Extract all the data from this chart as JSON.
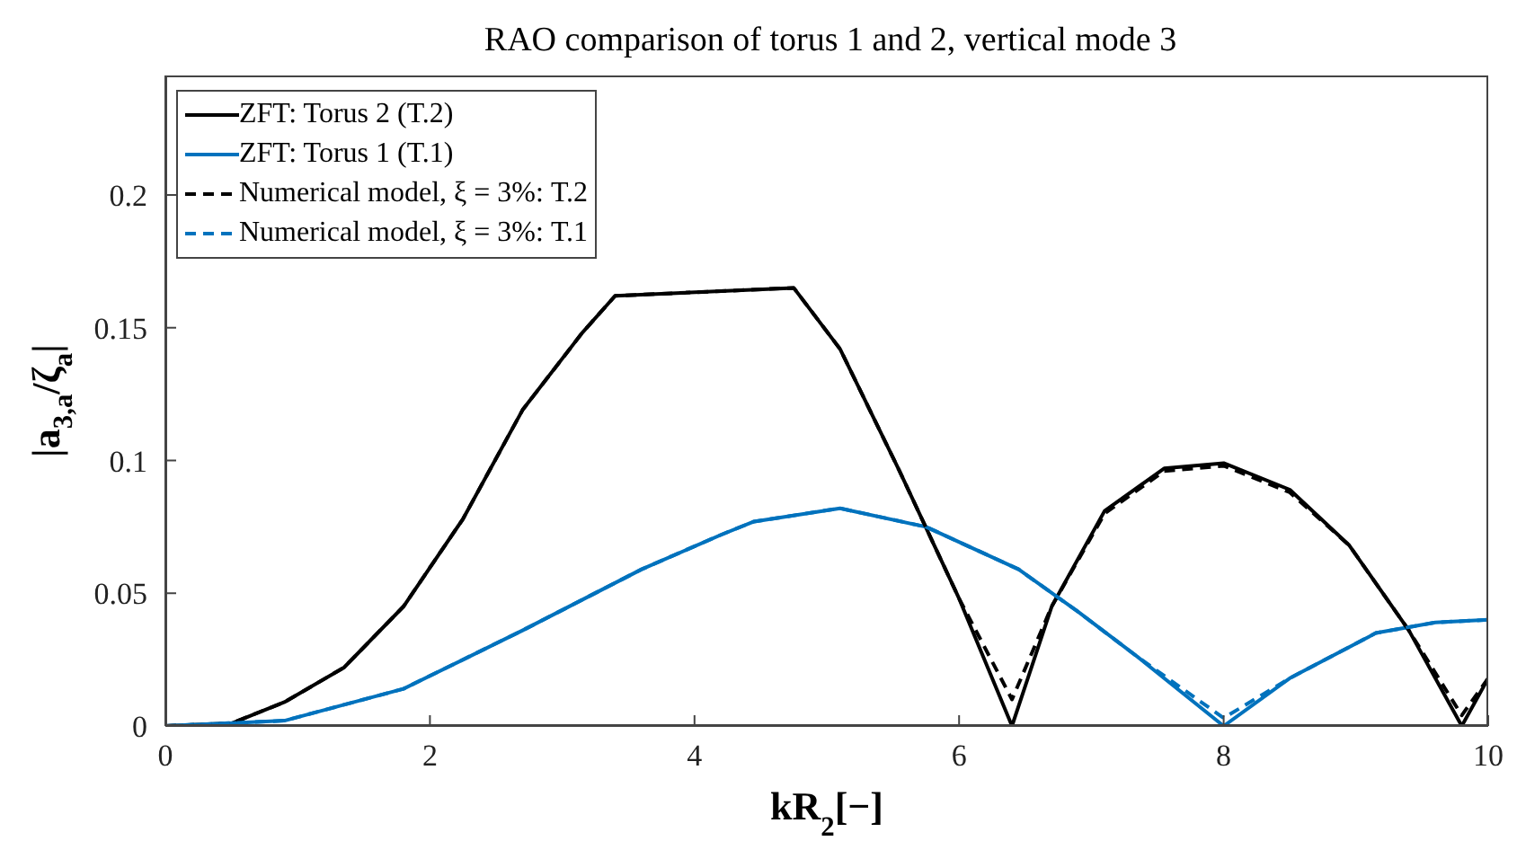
{
  "chart_data": {
    "type": "line",
    "title": "RAO comparison of torus 1 and 2, vertical mode 3",
    "xlabel": "kR$_{2}$[−]",
    "ylabel": "|a$_{3,a}$/ζ$_{a}$|",
    "xlim": [
      0,
      10
    ],
    "xticks": [
      0,
      2,
      4,
      6,
      8,
      10
    ],
    "ylim": [
      0,
      0.245
    ],
    "yticks": [
      0,
      0.05,
      0.1,
      0.15,
      0.2
    ],
    "grid": false,
    "legend": "top left",
    "marker": "none",
    "series": [
      {
        "name": "ZFT: Torus 2 (T.2)",
        "color": "#000000",
        "line_style": "solid",
        "x": [
          0,
          0.5,
          0.9,
          1.35,
          1.8,
          2.25,
          2.7,
          3.15,
          3.4,
          4.75,
          5.1,
          5.55,
          6,
          6.4,
          6.7,
          7.1,
          7.55,
          8,
          8.5,
          8.95,
          9.4,
          9.8,
          10
        ],
        "values": [
          0,
          0.001,
          0.009,
          0.022,
          0.045,
          0.078,
          0.119,
          0.148,
          0.162,
          0.165,
          0.142,
          0.096,
          0.048,
          0,
          0.045,
          0.081,
          0.097,
          0.099,
          0.089,
          0.068,
          0.036,
          0,
          0.018
        ]
      },
      {
        "name": "ZFT: Torus 1 (T.1)",
        "color": "#0072bd",
        "line_style": "solid",
        "x": [
          0,
          0.9,
          1.8,
          2.7,
          3.6,
          4.2,
          4.45,
          5.1,
          5.75,
          6.45,
          6.9,
          7.35,
          8,
          8.5,
          9.15,
          9.6,
          10
        ],
        "values": [
          0,
          0.002,
          0.014,
          0.036,
          0.059,
          0.072,
          0.077,
          0.082,
          0.075,
          0.059,
          0.043,
          0.026,
          0,
          0.018,
          0.035,
          0.039,
          0.04
        ]
      },
      {
        "name": "Numerical model, ξ = 3%: T.2",
        "color": "#000000",
        "line_style": "dashed",
        "x": [
          0,
          0.5,
          0.9,
          1.35,
          1.8,
          2.25,
          2.7,
          3.15,
          3.4,
          4.75,
          5.1,
          5.55,
          6,
          6.4,
          6.7,
          7.1,
          7.55,
          8,
          8.5,
          8.95,
          9.4,
          9.8,
          10
        ],
        "values": [
          0,
          0.001,
          0.009,
          0.022,
          0.045,
          0.078,
          0.119,
          0.148,
          0.162,
          0.165,
          0.142,
          0.096,
          0.048,
          0.01,
          0.045,
          0.08,
          0.096,
          0.098,
          0.088,
          0.068,
          0.036,
          0.004,
          0.018
        ]
      },
      {
        "name": "Numerical model, ξ = 3%: T.1",
        "color": "#0072bd",
        "line_style": "dashed",
        "x": [
          0,
          0.9,
          1.8,
          2.7,
          3.6,
          4.2,
          4.45,
          5.1,
          5.75,
          6.45,
          6.9,
          7.35,
          8,
          8.5,
          9.15,
          9.6,
          10
        ],
        "values": [
          0,
          0.002,
          0.014,
          0.036,
          0.059,
          0.072,
          0.077,
          0.082,
          0.075,
          0.059,
          0.043,
          0.026,
          0.003,
          0.018,
          0.035,
          0.039,
          0.04
        ]
      }
    ]
  }
}
